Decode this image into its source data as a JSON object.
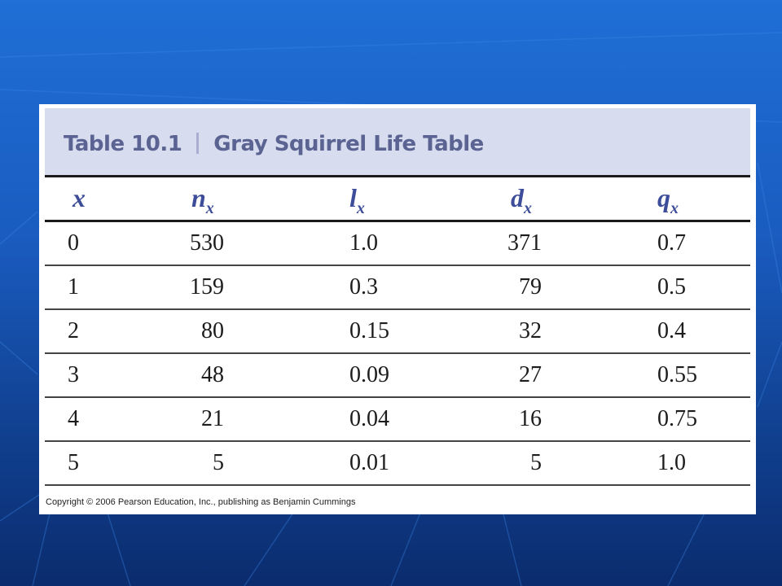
{
  "caption": {
    "label": "Table 10.1",
    "title": "Gray Squirrel Life Table"
  },
  "table": {
    "headers": [
      {
        "base": "x",
        "sub": ""
      },
      {
        "base": "n",
        "sub": "x"
      },
      {
        "base": "l",
        "sub": "x"
      },
      {
        "base": "d",
        "sub": "x"
      },
      {
        "base": "q",
        "sub": "x"
      }
    ],
    "rows": [
      [
        "0",
        "530",
        "1.0",
        "371",
        "0.7"
      ],
      [
        "1",
        "159",
        "0.3",
        "79",
        "0.5"
      ],
      [
        "2",
        "80",
        "0.15",
        "32",
        "0.4"
      ],
      [
        "3",
        "48",
        "0.09",
        "27",
        "0.55"
      ],
      [
        "4",
        "21",
        "0.04",
        "16",
        "0.75"
      ],
      [
        "5",
        "5",
        "0.01",
        "5",
        "1.0"
      ]
    ]
  },
  "copyright": "Copyright © 2006 Pearson Education, Inc., publishing as Benjamin Cummings",
  "colors": {
    "background_top": "#1f6fd6",
    "background_bottom": "#0b2c6e",
    "caption_bar": "#d7dcef",
    "caption_text": "#5a6391",
    "header_text": "#3e4d99"
  }
}
